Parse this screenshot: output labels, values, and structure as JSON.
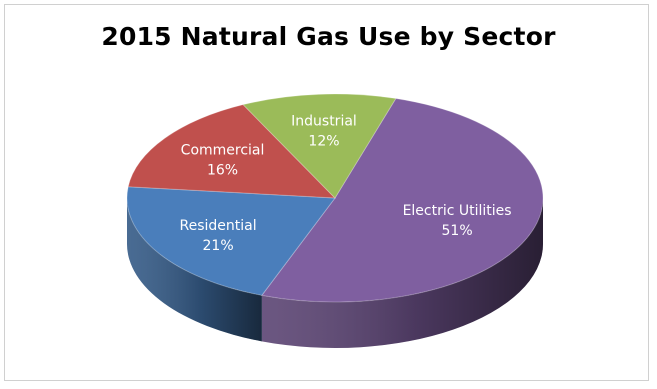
{
  "chart_data": {
    "type": "pie",
    "title": "2015 Natural Gas Use by Sector",
    "slices": [
      {
        "label": "Electric Utilities",
        "value": 51,
        "display": "51%",
        "color": "#7F5FA0"
      },
      {
        "label": "Residential",
        "value": 21,
        "display": "21%",
        "color": "#4A7EBB"
      },
      {
        "label": "Commercial",
        "value": 16,
        "display": "16%",
        "color": "#C0504D"
      },
      {
        "label": "Industrial",
        "value": 12,
        "display": "12%",
        "color": "#9BBB59"
      }
    ],
    "legend": "none",
    "style": "3d"
  }
}
